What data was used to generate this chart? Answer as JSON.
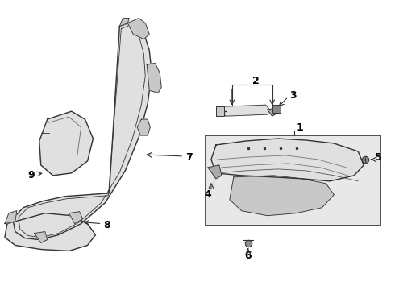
{
  "bg_color": "#ffffff",
  "line_color": "#333333",
  "text_color": "#000000",
  "fill_light": "#e0e0e0",
  "fill_mid": "#c8c8c8",
  "fill_dark": "#aaaaaa",
  "box_bg": "#e8e8e8"
}
